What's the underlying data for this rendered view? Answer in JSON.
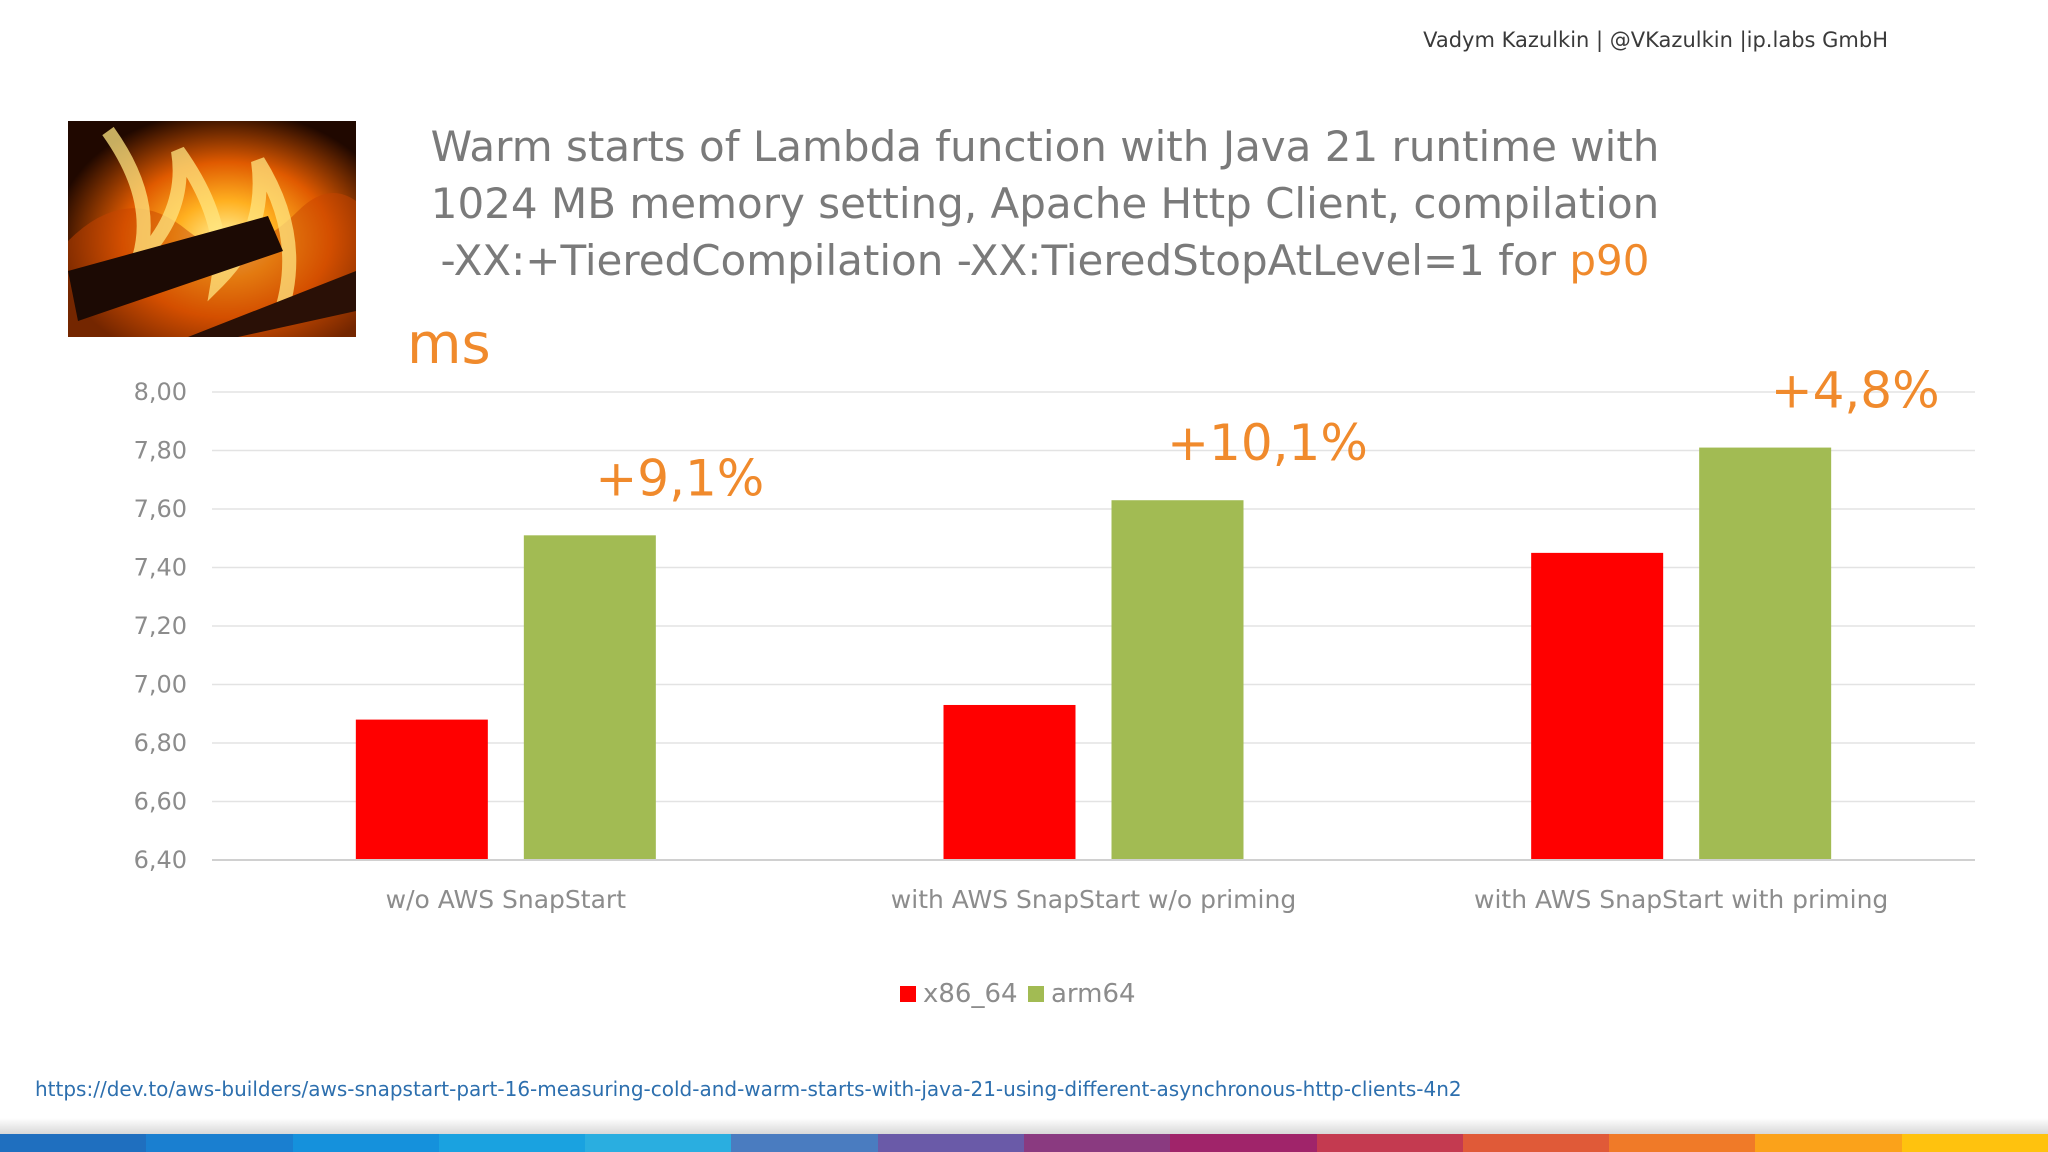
{
  "header": {
    "author_line": "Vadym Kazulkin | @VKazulkin |ip.labs GmbH"
  },
  "title": {
    "line1": "Warm starts of Lambda function with Java 21 runtime with",
    "line2": "1024 MB memory setting, Apache Http Client,  compilation",
    "line3_main": "-XX:+TieredCompilation -XX:TieredStopAtLevel=1 for ",
    "line3_highlight": "p90"
  },
  "footer": {
    "link": "https://dev.to/aws-builders/aws-snapstart-part-16-measuring-cold-and-warm-starts-with-java-21-using-different-asynchronous-http-clients-4n2"
  },
  "colors": {
    "accent": "#f08a2c",
    "x86": "#ff0000",
    "arm": "#a2bb53",
    "grid": "#e3e3e3",
    "axis_text": "#8c8c8c",
    "stripe": [
      "#1f6fbf",
      "#1a7fd0",
      "#1591dc",
      "#1aa2e0",
      "#2aaee0",
      "#4a7cc0",
      "#6a5aa8",
      "#8a3a80",
      "#a0246a",
      "#c43a50",
      "#e05a38",
      "#f07a28",
      "#fba21a",
      "#ffc20e"
    ]
  },
  "photo": {
    "description_icon": "fire-photo"
  },
  "chart_data": {
    "type": "bar",
    "unit_label": "ms",
    "categories": [
      "w/o AWS SnapStart",
      "with AWS SnapStart w/o priming",
      "with AWS SnapStart with priming"
    ],
    "series": [
      {
        "name": "x86_64",
        "color": "#ff0000",
        "values": [
          6.88,
          6.93,
          7.45
        ]
      },
      {
        "name": "arm64",
        "color": "#a2bb53",
        "values": [
          7.51,
          7.63,
          7.81
        ]
      }
    ],
    "ylim": [
      6.4,
      8.0
    ],
    "yticks": [
      "6,40",
      "6,60",
      "6,80",
      "7,00",
      "7,20",
      "7,40",
      "7,60",
      "7,80",
      "8,00"
    ],
    "annotations": [
      "+9,1%",
      "+10,1%",
      "+4,8%"
    ],
    "legend_position": "bottom-center",
    "grid": true
  }
}
